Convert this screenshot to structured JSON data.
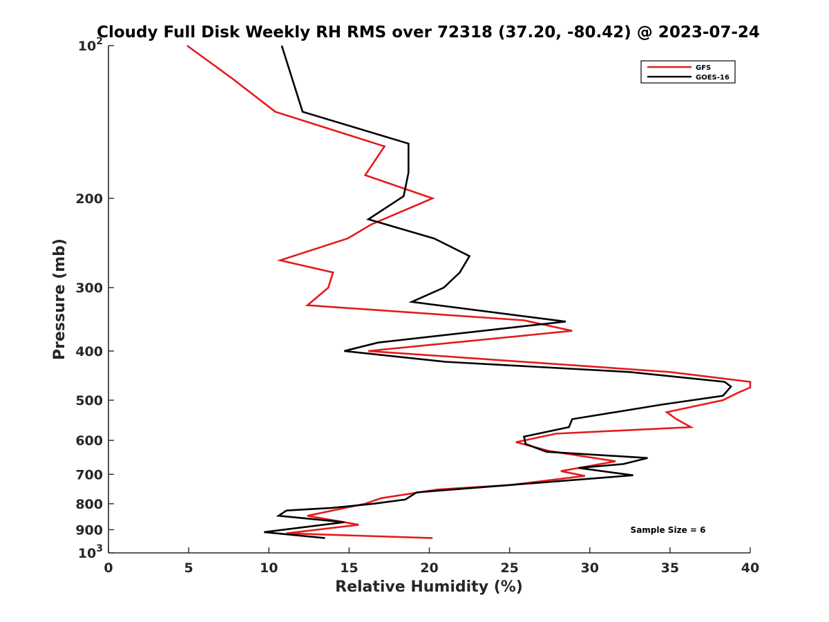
{
  "chart_data": {
    "type": "line",
    "title": "Cloudy Full Disk Weekly RH RMS over 72318 (37.20, -80.42) @ 2023-07-24",
    "xlabel": "Relative Humidity (%)",
    "ylabel": "Pressure (mb)",
    "xlim": [
      0,
      40
    ],
    "ylim": [
      100,
      1000
    ],
    "yscale": "log",
    "y_reversed": true,
    "x_ticks": [
      0,
      5,
      10,
      15,
      20,
      25,
      30,
      35,
      40
    ],
    "x_tick_labels": [
      "0",
      "5",
      "10",
      "15",
      "20",
      "25",
      "30",
      "35",
      "40"
    ],
    "y_ticks": [
      100,
      200,
      300,
      400,
      500,
      600,
      700,
      800,
      900,
      1000
    ],
    "y_tick_labels": [
      {
        "base": "10",
        "exp": "2"
      },
      {
        "base": "200"
      },
      {
        "base": "300"
      },
      {
        "base": "400"
      },
      {
        "base": "500"
      },
      {
        "base": "600"
      },
      {
        "base": "700"
      },
      {
        "base": "800"
      },
      {
        "base": "900"
      },
      {
        "base": "10",
        "exp": "3"
      }
    ],
    "legend_position": "top-right",
    "annotation": "Sample Size = 6",
    "series": [
      {
        "name": "GFS",
        "color": "#e41a1c",
        "points": [
          [
            4.9,
            100
          ],
          [
            7.7,
            116
          ],
          [
            10.4,
            135
          ],
          [
            17.2,
            158
          ],
          [
            16.0,
            180
          ],
          [
            20.2,
            200
          ],
          [
            16.4,
            225
          ],
          [
            14.9,
            240
          ],
          [
            10.7,
            265
          ],
          [
            14.0,
            280
          ],
          [
            13.7,
            300
          ],
          [
            12.4,
            325
          ],
          [
            25.9,
            348
          ],
          [
            28.9,
            365
          ],
          [
            16.2,
            400
          ],
          [
            35.0,
            440
          ],
          [
            40.0,
            460
          ],
          [
            40.0,
            472
          ],
          [
            39.2,
            484
          ],
          [
            38.3,
            500
          ],
          [
            34.8,
            528
          ],
          [
            35.4,
            545
          ],
          [
            36.3,
            565
          ],
          [
            27.9,
            582
          ],
          [
            25.4,
            605
          ],
          [
            27.5,
            630
          ],
          [
            31.6,
            660
          ],
          [
            28.2,
            690
          ],
          [
            29.7,
            705
          ],
          [
            25.0,
            735
          ],
          [
            20.5,
            750
          ],
          [
            17.0,
            780
          ],
          [
            16.0,
            800
          ],
          [
            12.4,
            845
          ],
          [
            15.6,
            880
          ],
          [
            11.1,
            915
          ],
          [
            20.2,
            935
          ]
        ]
      },
      {
        "name": "GOES-16",
        "color": "#000000",
        "points": [
          [
            10.8,
            100
          ],
          [
            12.1,
            135
          ],
          [
            18.7,
            156
          ],
          [
            18.7,
            178
          ],
          [
            18.4,
            198
          ],
          [
            16.2,
            220
          ],
          [
            20.3,
            240
          ],
          [
            22.5,
            260
          ],
          [
            21.9,
            280
          ],
          [
            20.9,
            300
          ],
          [
            18.9,
            320
          ],
          [
            28.5,
            350
          ],
          [
            25.0,
            360
          ],
          [
            16.8,
            385
          ],
          [
            14.7,
            400
          ],
          [
            21.0,
            420
          ],
          [
            32.5,
            440
          ],
          [
            38.4,
            460
          ],
          [
            38.8,
            470
          ],
          [
            38.3,
            490
          ],
          [
            34.5,
            510
          ],
          [
            28.9,
            545
          ],
          [
            28.7,
            565
          ],
          [
            25.9,
            590
          ],
          [
            26.0,
            610
          ],
          [
            27.3,
            632
          ],
          [
            33.6,
            650
          ],
          [
            32.1,
            668
          ],
          [
            29.3,
            680
          ],
          [
            32.7,
            703
          ],
          [
            19.2,
            760
          ],
          [
            18.5,
            785
          ],
          [
            16.5,
            800
          ],
          [
            14.0,
            815
          ],
          [
            11.1,
            825
          ],
          [
            10.6,
            845
          ],
          [
            14.7,
            870
          ],
          [
            9.7,
            910
          ],
          [
            13.5,
            935
          ]
        ]
      }
    ]
  }
}
